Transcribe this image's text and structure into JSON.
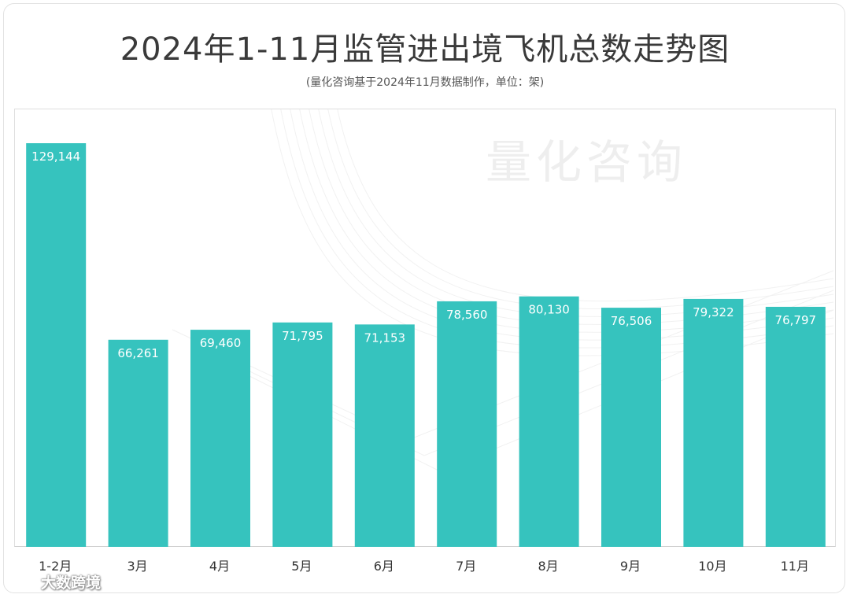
{
  "chart_data": {
    "type": "bar",
    "title": "2024年1-11月监管进出境飞机总数走势图",
    "subtitle": "(量化咨询基于2024年11月数据制作，单位：架)",
    "categories": [
      "1-2月",
      "3月",
      "4月",
      "5月",
      "6月",
      "7月",
      "8月",
      "9月",
      "10月",
      "11月"
    ],
    "values": [
      129144,
      66261,
      69460,
      71795,
      71153,
      78560,
      80130,
      76506,
      79322,
      76797
    ],
    "value_labels": [
      "129,144",
      "66,261",
      "69,460",
      "71,795",
      "71,153",
      "78,560",
      "80,130",
      "76,506",
      "79,322",
      "76,797"
    ],
    "ylim": [
      0,
      129144
    ],
    "grid": false,
    "bar_color": "#36c3be"
  },
  "watermark": "量化咨询",
  "logo": {
    "text": "大数跨境"
  }
}
